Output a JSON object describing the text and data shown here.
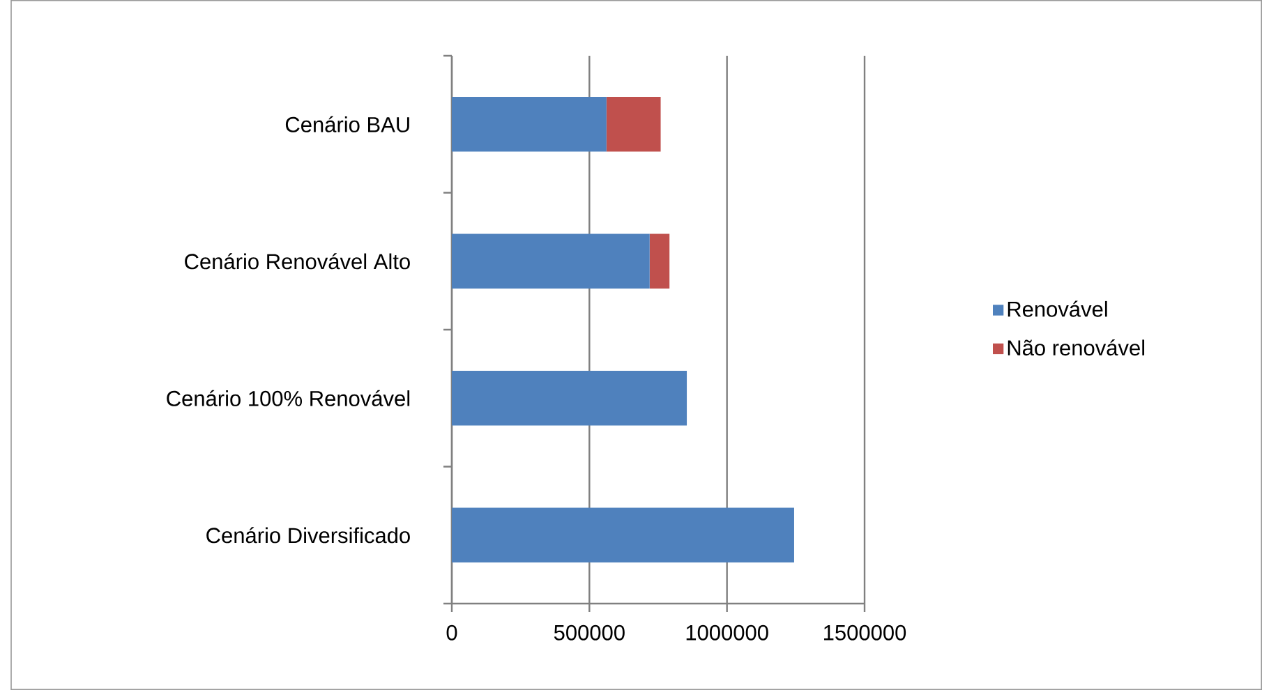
{
  "chart_data": {
    "type": "bar",
    "orientation": "horizontal",
    "stacked": true,
    "categories": [
      "Cenário BAU",
      "Cenário Renovável Alto",
      "Cenário 100% Renovável",
      "Cenário Diversificado"
    ],
    "series": [
      {
        "name": "Renovável",
        "color": "#4f81bd",
        "values": [
          562000,
          719000,
          854000,
          1244000
        ]
      },
      {
        "name": "Não renovável",
        "color": "#c0504d",
        "values": [
          197000,
          72000,
          null,
          null
        ]
      }
    ],
    "xlim": [
      0,
      1500000
    ],
    "xticks": [
      0,
      500000,
      1000000,
      1500000
    ],
    "grid": "x",
    "legend": "right"
  }
}
